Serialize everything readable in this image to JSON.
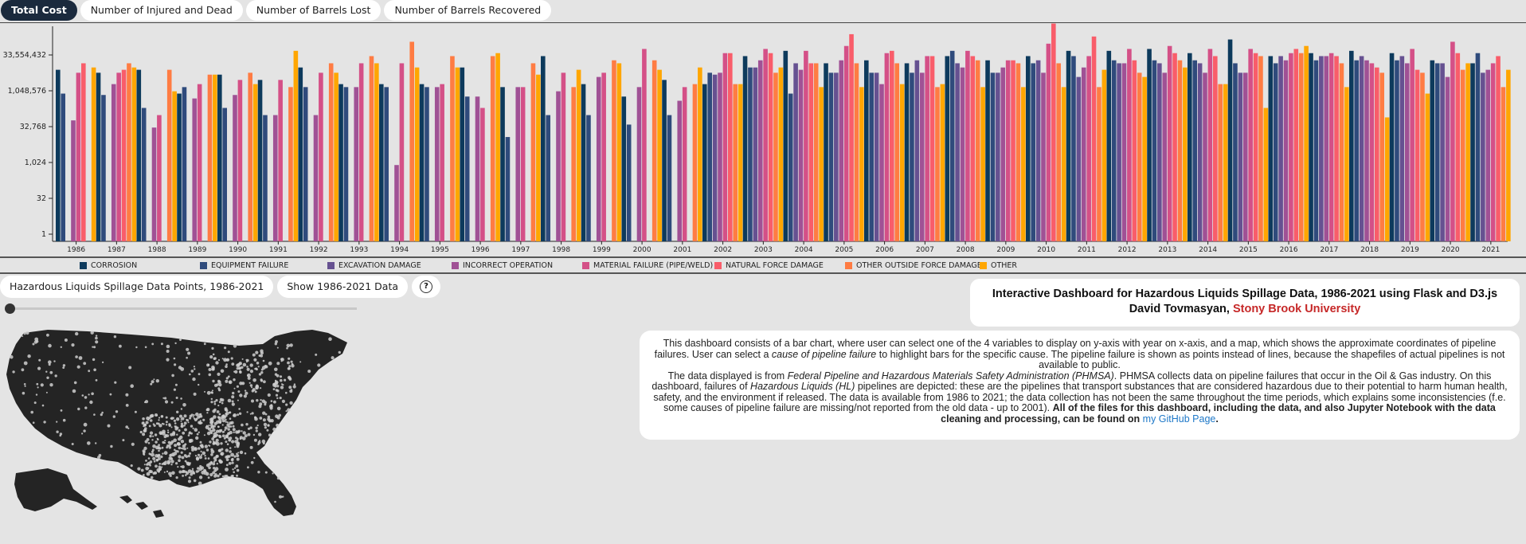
{
  "tabs": [
    {
      "label": "Total Cost",
      "active": true
    },
    {
      "label": "Number of Injured and Dead",
      "active": false
    },
    {
      "label": "Number of Barrels Lost",
      "active": false
    },
    {
      "label": "Number of Barrels Recovered",
      "active": false
    }
  ],
  "chart_data": {
    "type": "bar",
    "scale": "log2",
    "ylim": [
      0.5,
      536870912
    ],
    "yticks": [
      "1",
      "32",
      "1,024",
      "32,768",
      "1,048,576",
      "33,554,432"
    ],
    "categories": [
      "1986",
      "1987",
      "1988",
      "1989",
      "1990",
      "1991",
      "1992",
      "1993",
      "1994",
      "1995",
      "1996",
      "1997",
      "1998",
      "1999",
      "2000",
      "2001",
      "2002",
      "2003",
      "2004",
      "2005",
      "2006",
      "2007",
      "2008",
      "2009",
      "2010",
      "2011",
      "2012",
      "2013",
      "2014",
      "2015",
      "2016",
      "2017",
      "2018",
      "2019",
      "2020",
      "2021"
    ],
    "series": [
      {
        "name": "CORROSION",
        "color": "#0d3a5c",
        "values": [
          8000000.0,
          6000000.0,
          8000000.0,
          800000,
          5000000.0,
          3000000.0,
          10000000.0,
          2000000.0,
          2000000.0,
          2000000.0,
          10000000.0,
          1500000.0,
          30000000.0,
          2000000.0,
          600000,
          3000000.0,
          2000000.0,
          30000000.0,
          50000000.0,
          15000000.0,
          20000000.0,
          15000000.0,
          30000000.0,
          20000000.0,
          30000000.0,
          50000000.0,
          50000000.0,
          60000000.0,
          40000000.0,
          150000000.0,
          30000000.0,
          40000000.0,
          50000000.0,
          40000000.0,
          20000000.0,
          15000000.0
        ]
      },
      {
        "name": "EQUIPMENT FAILURE",
        "color": "#2f4b7c",
        "values": [
          800000,
          700000,
          200000,
          1500000.0,
          200000,
          100000,
          1500000.0,
          1500000.0,
          1500000.0,
          1500000.0,
          600000,
          12000,
          100000,
          100000,
          40000,
          100000,
          6000000.0,
          10000000.0,
          800000,
          6000000.0,
          6000000.0,
          6000000.0,
          50000000.0,
          6000000.0,
          15000000.0,
          30000000.0,
          20000000.0,
          20000000.0,
          20000000.0,
          15000000.0,
          15000000.0,
          20000000.0,
          20000000.0,
          20000000.0,
          15000000.0,
          40000000.0
        ]
      },
      {
        "name": "EXCAVATION DAMAGE",
        "color": "#665191",
        "values": [
          0,
          0,
          0,
          0,
          0,
          0,
          0,
          0,
          0,
          0,
          0,
          0,
          0,
          0,
          0,
          0,
          5000000.0,
          10000000.0,
          15000000.0,
          6000000.0,
          6000000.0,
          20000000.0,
          15000000.0,
          6000000.0,
          20000000.0,
          4000000.0,
          15000000.0,
          15000000.0,
          15000000.0,
          6000000.0,
          30000000.0,
          30000000.0,
          30000000.0,
          30000000.0,
          15000000.0,
          6000000.0
        ]
      },
      {
        "name": "INCORRECT OPERATION",
        "color": "#a05195",
        "values": [
          60000,
          2000000.0,
          30000,
          500000,
          700000,
          100000,
          100000,
          1500000.0,
          800,
          1500000.0,
          600000,
          1500000.0,
          1000000.0,
          4000000.0,
          1500000.0,
          400000,
          6000000.0,
          20000000.0,
          8000000.0,
          20000000.0,
          2000000.0,
          6000000.0,
          10000000.0,
          10000000.0,
          6000000.0,
          10000000.0,
          15000000.0,
          6000000.0,
          6000000.0,
          6000000.0,
          20000000.0,
          30000000.0,
          20000000.0,
          15000000.0,
          4000000.0,
          8000000.0
        ]
      },
      {
        "name": "MATERIAL FAILURE (PIPE/WELD)",
        "color": "#d45087",
        "values": [
          6000000.0,
          6000000.0,
          100000,
          2000000.0,
          3000000.0,
          3000000.0,
          6000000.0,
          15000000.0,
          15000000.0,
          2000000.0,
          200000,
          1500000.0,
          6000000.0,
          6000000.0,
          60000000.0,
          1500000.0,
          40000000.0,
          60000000.0,
          50000000.0,
          80000000.0,
          40000000.0,
          30000000.0,
          50000000.0,
          20000000.0,
          100000000.0,
          30000000.0,
          60000000.0,
          80000000.0,
          60000000.0,
          60000000.0,
          40000000.0,
          40000000.0,
          15000000.0,
          60000000.0,
          120000000.0,
          15000000.0
        ]
      },
      {
        "name": "NATURAL FORCE DAMAGE",
        "color": "#f95d6a",
        "values": [
          15000000.0,
          8000000.0,
          0,
          0,
          0,
          0,
          0,
          0,
          0,
          0,
          0,
          0,
          0,
          0,
          0,
          0,
          40000000.0,
          40000000.0,
          15000000.0,
          250000000.0,
          50000000.0,
          30000000.0,
          30000000.0,
          20000000.0,
          700000000.0,
          200000000.0,
          20000000.0,
          40000000.0,
          30000000.0,
          40000000.0,
          60000000.0,
          30000000.0,
          10000000.0,
          8000000.0,
          40000000.0,
          30000000.0
        ]
      },
      {
        "name": "OTHER OUTSIDE FORCE DAMAGE",
        "color": "#ff7c43",
        "values": [
          0,
          15000000.0,
          8000000.0,
          5000000.0,
          6000000.0,
          1500000.0,
          15000000.0,
          30000000.0,
          120000000.0,
          30000000.0,
          30000000.0,
          15000000.0,
          1500000.0,
          20000000.0,
          20000000.0,
          2000000.0,
          2000000.0,
          6000000.0,
          15000000.0,
          15000000.0,
          15000000.0,
          1500000.0,
          20000000.0,
          15000000.0,
          15000000.0,
          1500000.0,
          6000000.0,
          20000000.0,
          2000000.0,
          30000000.0,
          40000000.0,
          15000000.0,
          6000000.0,
          6000000.0,
          8000000.0,
          1500000.0
        ]
      },
      {
        "name": "OTHER",
        "color": "#ffa600",
        "values": [
          10000000.0,
          10000000.0,
          1000000.0,
          5000000.0,
          2000000.0,
          50000000.0,
          6000000.0,
          15000000.0,
          10000000.0,
          10000000.0,
          40000000.0,
          5000000.0,
          8000000.0,
          15000000.0,
          8000000.0,
          10000000.0,
          2000000.0,
          10000000.0,
          1500000.0,
          1500000.0,
          2000000.0,
          2000000.0,
          1500000.0,
          1500000.0,
          1500000.0,
          8000000.0,
          4000000.0,
          10000000.0,
          2000000.0,
          200000,
          80000000.0,
          1500000.0,
          80000,
          800000,
          15000000.0,
          8000000.0
        ]
      }
    ]
  },
  "controls": {
    "data_points_button": "Hazardous Liquids Spillage Data Points, 1986-2021",
    "show_all_button": "Show 1986-2021 Data",
    "help_icon": "question-circle-icon",
    "help_label": "?"
  },
  "title_card": {
    "line1": "Interactive Dashboard for Hazardous Liquids Spillage Data, 1986-2021 using Flask and D3.js",
    "author": "David Tovmasyan, ",
    "university": "Stony Brook University"
  },
  "description": {
    "p1_a": "This dashboard consists of a bar chart, where user can select one of the 4 variables to display on y-axis with year on x-axis, and a map, which shows the approximate coordinates of pipeline failures. User can select a ",
    "p1_em": "cause of pipeline failure",
    "p1_b": " to highlight bars for the specific cause. The pipeline failure is shown as points instead of lines, because the shapefiles of actual pipelines is not available to public.",
    "p2_a": "The data displayed is from ",
    "p2_em1": "Federal Pipeline and Hazardous Materials Safety Administration (PHMSA)",
    "p2_b": ". PHMSA collects data on pipeline failures that occur in the Oil & Gas industry. On this dashboard, failures of ",
    "p2_em2": "Hazardous Liquids (HL)",
    "p2_c": " pipelines are depicted: these are the pipelines that transport substances that are considered hazardous due to their potential to harm human health, safety, and the environment if released. The data is available from 1986 to 2021; the data collection has not been the same throughout the time periods, which explains some inconsistencies (f.e. some causes of pipeline failure are missing/not reported from the old data - up to 2001). ",
    "p2_bold": "All of the files for this dashboard, including the data, and also Jupyter Notebook with the data cleaning and processing, can be found on ",
    "p2_link": "my GitHub Page",
    "p2_end": "."
  },
  "colors": {
    "accent": "#1b2a3d",
    "university": "#c62828",
    "link": "#1e78c8",
    "map_land": "#242424",
    "map_dots": "#cccccc"
  }
}
